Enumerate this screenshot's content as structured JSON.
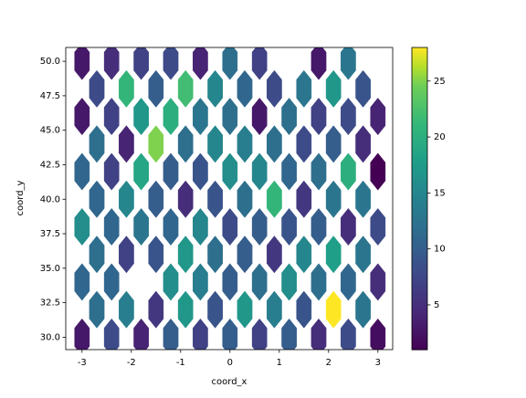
{
  "chart_data": {
    "type": "hexbin",
    "xlabel": "coord_x",
    "ylabel": "coord_y",
    "colormap": "viridis",
    "x": [
      -3,
      -2.4,
      -1.8,
      -1.2,
      -0.6,
      0,
      0.6,
      1.8,
      2.4,
      -2.7,
      -2.1,
      -1.5,
      -0.9,
      -0.3,
      0.3,
      0.9,
      1.5,
      2.1,
      2.7,
      -3,
      -2.4,
      -1.8,
      -1.2,
      -0.6,
      0,
      0.6,
      1.2,
      1.8,
      2.4,
      3,
      -2.7,
      -2.1,
      -1.5,
      -0.9,
      -0.3,
      0.3,
      0.9,
      1.5,
      2.1,
      2.7,
      -3,
      -2.4,
      -1.8,
      -1.2,
      -0.6,
      0,
      0.6,
      1.2,
      1.8,
      2.4,
      3,
      -2.7,
      -2.1,
      -1.5,
      -0.9,
      -0.3,
      0.3,
      0.9,
      1.5,
      2.1,
      2.7,
      -3,
      -2.4,
      -1.8,
      -1.2,
      -0.6,
      0,
      0.6,
      1.2,
      1.8,
      2.4,
      3,
      -2.7,
      -2.1,
      -1.5,
      -0.9,
      -0.3,
      0.3,
      0.9,
      1.5,
      2.1,
      2.7,
      -3,
      -2.4,
      -1.2,
      -0.6,
      0,
      0.6,
      1.2,
      1.8,
      2.4,
      3,
      -2.7,
      -2.1,
      -1.5,
      -0.9,
      -0.3,
      0.3,
      0.9,
      1.5,
      2.1,
      2.7,
      -3,
      -2.4,
      -1.8,
      -1.2,
      -0.6,
      0,
      0.6,
      1.2,
      1.8,
      2.4,
      3
    ],
    "y": [
      50,
      50,
      50,
      50,
      50,
      50,
      50,
      50,
      50,
      48,
      48,
      48,
      48,
      48,
      48,
      48,
      48,
      48,
      48,
      46,
      46,
      46,
      46,
      46,
      46,
      46,
      46,
      46,
      46,
      46,
      44,
      44,
      44,
      44,
      44,
      44,
      44,
      44,
      44,
      44,
      42,
      42,
      42,
      42,
      42,
      42,
      42,
      42,
      42,
      42,
      42,
      40,
      40,
      40,
      40,
      40,
      40,
      40,
      40,
      40,
      40,
      38,
      38,
      38,
      38,
      38,
      38,
      38,
      38,
      38,
      38,
      38,
      36,
      36,
      36,
      36,
      36,
      36,
      36,
      36,
      36,
      36,
      34,
      34,
      34,
      34,
      34,
      34,
      34,
      34,
      34,
      34,
      32,
      32,
      32,
      32,
      32,
      32,
      32,
      32,
      32,
      32,
      30,
      30,
      30,
      30,
      30,
      30,
      30,
      30,
      30,
      30,
      30
    ],
    "values": [
      3,
      5,
      7,
      8,
      4,
      12,
      7,
      3,
      13,
      8,
      21,
      10,
      22,
      15,
      11,
      8,
      13,
      17,
      9,
      3,
      7,
      17,
      20,
      13,
      12,
      3,
      12,
      7,
      8,
      4,
      12,
      4,
      25,
      12,
      15,
      14,
      12,
      8,
      10,
      5,
      11,
      7,
      19,
      10,
      9,
      16,
      15,
      11,
      12,
      20,
      1,
      11,
      15,
      10,
      5,
      9,
      12,
      21,
      6,
      13,
      13,
      16,
      11,
      13,
      11,
      15,
      8,
      10,
      9,
      10,
      5,
      8,
      12,
      7,
      9,
      17,
      12,
      10,
      6,
      15,
      18,
      13,
      11,
      11,
      16,
      14,
      10,
      12,
      16,
      12,
      11,
      5,
      12,
      14,
      6,
      17,
      9,
      17,
      14,
      9,
      28,
      13,
      3,
      8,
      4,
      10,
      7,
      10,
      7,
      10,
      5,
      8,
      2
    ],
    "xlim": [
      -3.33,
      3.3
    ],
    "ylim": [
      29.1,
      51.0
    ],
    "xticks": [
      -3,
      -2,
      -1,
      0,
      1,
      2,
      3
    ],
    "yticks": [
      {
        "value": 30,
        "label": "30.0"
      },
      {
        "value": 32.5,
        "label": "32.5"
      },
      {
        "value": 35,
        "label": "35.0"
      },
      {
        "value": 37.5,
        "label": "37.5"
      },
      {
        "value": 40,
        "label": "40.0"
      },
      {
        "value": 42.5,
        "label": "42.5"
      },
      {
        "value": 45,
        "label": "45.0"
      },
      {
        "value": 47.5,
        "label": "47.5"
      },
      {
        "value": 50,
        "label": "50.0"
      }
    ],
    "clim": [
      1,
      28
    ],
    "cticks": [
      5,
      10,
      15,
      20,
      25
    ]
  }
}
